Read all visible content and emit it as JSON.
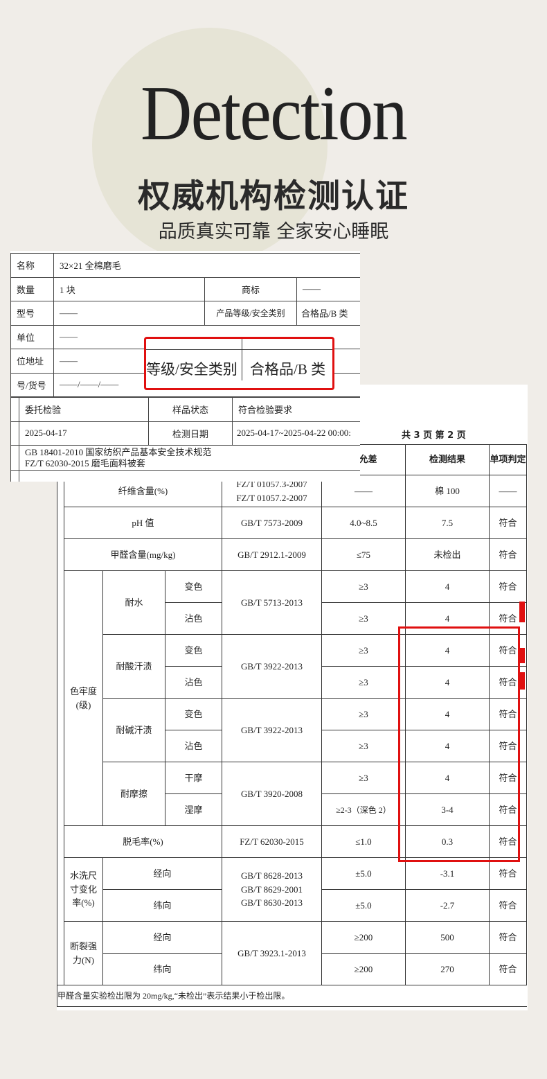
{
  "header": {
    "english_title": "Detection",
    "title": "权威机构检测认证",
    "subtitle": "品质真实可靠 全家安心睡眠"
  },
  "front_doc": {
    "rows": [
      {
        "label": "名称",
        "value": "32×21 全棉磨毛"
      },
      {
        "label": "数量",
        "value": "1 块",
        "label2": "商标",
        "value2": "——"
      },
      {
        "label": "型号",
        "value": "——",
        "label2": "产品等级/安全类别",
        "value2": "合格品/B 类"
      },
      {
        "label": "单位",
        "value": "——"
      },
      {
        "label": "位地址",
        "value": "——"
      },
      {
        "label": "号/货号",
        "value": "——/——/——"
      }
    ],
    "row_inspection": {
      "type": "委托检验",
      "sample_state_label": "样品状态",
      "sample_state": "符合检验要求"
    },
    "row_date": {
      "date": "2025-04-17",
      "test_date_label": "检测日期",
      "test_date": "2025-04-17~2025-04-22 00:00:"
    },
    "standards": [
      "GB 18401-2010  国家纺织产品基本安全技术规范",
      "FZ/T 62030-2015  磨毛面料被套"
    ],
    "zoom_callout": {
      "label": "等级/安全类别",
      "value": "合格品/B 类"
    }
  },
  "back_doc": {
    "pages": "共 3 页   第 2 页",
    "headers": {
      "limit": "及允差",
      "result": "检测结果",
      "verdict": "单项判定"
    },
    "fiber": {
      "item": "纤维含量(%)",
      "std1": "FZ/T 01057.3-2007",
      "std2": "FZ/T 01057.2-2007",
      "limit": "——",
      "result": "棉 100",
      "verdict": "——"
    },
    "ph": {
      "item": "pH 值",
      "std": "GB/T 7573-2009",
      "limit": "4.0~8.5",
      "result": "7.5",
      "verdict": "符合"
    },
    "formaldehyde": {
      "item": "甲醛含量(mg/kg)",
      "std": "GB/T 2912.1-2009",
      "limit": "≤75",
      "result": "未检出",
      "verdict": "符合"
    },
    "colorfastness": {
      "item": "色牢度(级)",
      "groups": [
        {
          "name": "耐水",
          "std": "GB/T 5713-2013",
          "rows": [
            {
              "sub": "变色",
              "limit": "≥3",
              "result": "4",
              "verdict": "符合"
            },
            {
              "sub": "沾色",
              "limit": "≥3",
              "result": "4",
              "verdict": "符合"
            }
          ]
        },
        {
          "name": "耐酸汗渍",
          "std": "GB/T 3922-2013",
          "rows": [
            {
              "sub": "变色",
              "limit": "≥3",
              "result": "4",
              "verdict": "符合"
            },
            {
              "sub": "沾色",
              "limit": "≥3",
              "result": "4",
              "verdict": "符合"
            }
          ]
        },
        {
          "name": "耐碱汗渍",
          "std": "GB/T 3922-2013",
          "rows": [
            {
              "sub": "变色",
              "limit": "≥3",
              "result": "4",
              "verdict": "符合"
            },
            {
              "sub": "沾色",
              "limit": "≥3",
              "result": "4",
              "verdict": "符合"
            }
          ]
        },
        {
          "name": "耐摩擦",
          "std": "GB/T 3920-2008",
          "rows": [
            {
              "sub": "干摩",
              "limit": "≥3",
              "result": "4",
              "verdict": "符合"
            },
            {
              "sub": "湿摩",
              "limit": "≥2-3（深色 2）",
              "result": "3-4",
              "verdict": "符合"
            }
          ]
        }
      ]
    },
    "pilling": {
      "item": "脱毛率(%)",
      "std": "FZ/T 62030-2015",
      "limit": "≤1.0",
      "result": "0.3",
      "verdict": "符合"
    },
    "shrinkage": {
      "item": "水洗尺寸变化率(%)",
      "std1": "GB/T 8628-2013",
      "std2": "GB/T 8629-2001",
      "std3": "GB/T 8630-2013",
      "rows": [
        {
          "sub": "经向",
          "limit": "±5.0",
          "result": "-3.1",
          "verdict": "符合"
        },
        {
          "sub": "纬向",
          "limit": "±5.0",
          "result": "-2.7",
          "verdict": "符合"
        }
      ]
    },
    "strength": {
      "item": "断裂强力(N)",
      "std": "GB/T 3923.1-2013",
      "rows": [
        {
          "sub": "经向",
          "limit": "≥200",
          "result": "500",
          "verdict": "符合"
        },
        {
          "sub": "纬向",
          "limit": "≥200",
          "result": "270",
          "verdict": "符合"
        }
      ]
    },
    "footnote": "甲醛含量实验检出限为 20mg/kg,“未检出”表示结果小于检出限。"
  },
  "colors": {
    "background": "#f0ede8",
    "highlight": "#e01010",
    "circle": "#e6e4d6"
  }
}
